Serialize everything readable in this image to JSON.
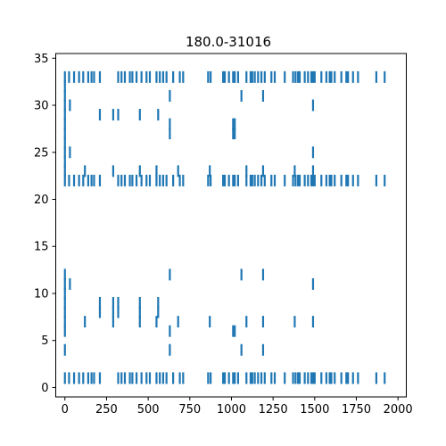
{
  "chart_data": {
    "type": "eventplot",
    "title": "180.0-31016",
    "xlabel": "",
    "ylabel": "",
    "xlim": [
      -55,
      2050
    ],
    "ylim": [
      -1,
      35.5
    ],
    "x_ticks": [
      0,
      250,
      500,
      750,
      1000,
      1250,
      1500,
      1750,
      2000
    ],
    "y_ticks": [
      0,
      5,
      10,
      15,
      20,
      25,
      30,
      35
    ],
    "grid": false,
    "legend": "none",
    "color": "#1f77b4",
    "rows": [
      {
        "y": 1,
        "x": [
          0,
          25,
          55,
          85,
          110,
          140,
          160,
          175,
          210,
          320,
          340,
          360,
          390,
          405,
          430,
          460,
          490,
          510,
          550,
          570,
          590,
          610,
          650,
          690,
          710,
          860,
          875,
          950,
          960,
          985,
          1010,
          1020,
          1040,
          1090,
          1115,
          1125,
          1140,
          1160,
          1180,
          1200,
          1240,
          1260,
          1320,
          1370,
          1385,
          1400,
          1410,
          1440,
          1460,
          1480,
          1490,
          1500,
          1540,
          1570,
          1590,
          1600,
          1620,
          1660,
          1690,
          1700,
          1730,
          1760,
          1870,
          1920
        ]
      },
      {
        "y": 22,
        "x": [
          0,
          25,
          55,
          85,
          110,
          140,
          160,
          175,
          210,
          320,
          340,
          360,
          390,
          405,
          430,
          460,
          490,
          510,
          550,
          570,
          590,
          610,
          650,
          690,
          710,
          860,
          875,
          950,
          960,
          985,
          1010,
          1020,
          1040,
          1090,
          1115,
          1125,
          1140,
          1160,
          1180,
          1200,
          1240,
          1260,
          1320,
          1370,
          1385,
          1400,
          1410,
          1440,
          1460,
          1480,
          1490,
          1500,
          1540,
          1570,
          1590,
          1600,
          1620,
          1660,
          1690,
          1700,
          1730,
          1760,
          1870,
          1920
        ]
      },
      {
        "y": 33,
        "x": [
          0,
          25,
          55,
          85,
          110,
          140,
          160,
          175,
          210,
          320,
          340,
          360,
          390,
          405,
          430,
          460,
          490,
          510,
          550,
          570,
          590,
          610,
          650,
          690,
          710,
          860,
          875,
          950,
          960,
          985,
          1010,
          1020,
          1040,
          1090,
          1115,
          1125,
          1140,
          1160,
          1180,
          1200,
          1240,
          1260,
          1320,
          1370,
          1385,
          1400,
          1410,
          1440,
          1460,
          1480,
          1490,
          1500,
          1540,
          1570,
          1590,
          1600,
          1620,
          1660,
          1690,
          1700,
          1730,
          1760,
          1870,
          1920
        ]
      },
      {
        "y": 4,
        "x": [
          0,
          630,
          1060,
          1190
        ]
      },
      {
        "y": 6,
        "x": [
          0,
          630,
          1010,
          1020
        ]
      },
      {
        "y": 7,
        "x": [
          0,
          120,
          290,
          450,
          550,
          680,
          870,
          1090,
          1190,
          1380,
          1490
        ]
      },
      {
        "y": 8,
        "x": [
          0,
          210,
          290,
          320,
          450,
          560
        ]
      },
      {
        "y": 9,
        "x": [
          0,
          210,
          290,
          320,
          450,
          560
        ]
      },
      {
        "y": 10,
        "x": [
          0
        ]
      },
      {
        "y": 11,
        "x": [
          0,
          30,
          1490
        ]
      },
      {
        "y": 12,
        "x": [
          0,
          630,
          1060,
          1190
        ]
      },
      {
        "y": 23,
        "x": [
          0,
          120,
          290,
          450,
          550,
          680,
          870,
          1090,
          1190,
          1380,
          1490
        ]
      },
      {
        "y": 24,
        "x": [
          0
        ]
      },
      {
        "y": 25,
        "x": [
          0,
          30,
          1490
        ]
      },
      {
        "y": 26,
        "x": [
          0
        ]
      },
      {
        "y": 27,
        "x": [
          0,
          630,
          1010,
          1020
        ]
      },
      {
        "y": 28,
        "x": [
          0,
          630,
          1010,
          1020
        ]
      },
      {
        "y": 29,
        "x": [
          0,
          210,
          290,
          320,
          450,
          560
        ]
      },
      {
        "y": 30,
        "x": [
          0,
          30,
          1490
        ]
      },
      {
        "y": 31,
        "x": [
          0,
          630,
          1060,
          1190
        ]
      },
      {
        "y": 32,
        "x": [
          0
        ]
      }
    ]
  }
}
